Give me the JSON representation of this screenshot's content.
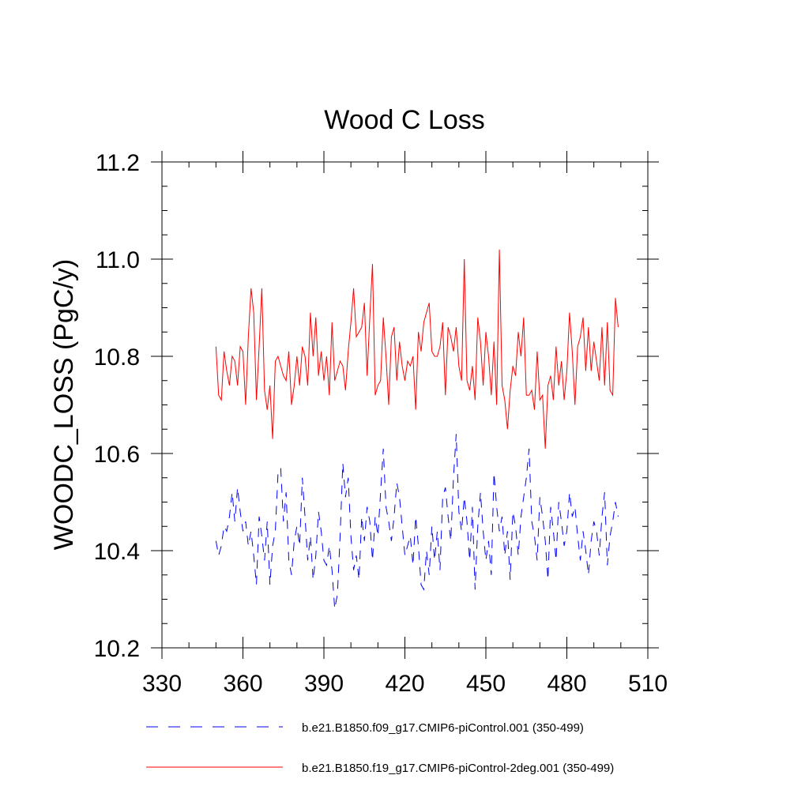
{
  "chart_data": {
    "type": "line",
    "title": "Wood C Loss",
    "xlabel": "",
    "ylabel": "WOODC_LOSS  (PgC/y)",
    "xlim": [
      330,
      510
    ],
    "ylim": [
      10.2,
      11.2
    ],
    "x_ticks": [
      330,
      360,
      390,
      420,
      450,
      480,
      510
    ],
    "x_tick_labels": [
      "330",
      "360",
      "390",
      "420",
      "450",
      "480",
      "510"
    ],
    "y_ticks": [
      10.2,
      10.4,
      10.6,
      10.8,
      11.0,
      11.2
    ],
    "y_tick_labels": [
      "10.2",
      "10.4",
      "10.6",
      "10.8",
      "11.0",
      "11.2"
    ],
    "grid": false,
    "legend_position": "bottom",
    "x": [
      350,
      351,
      352,
      353,
      354,
      355,
      356,
      357,
      358,
      359,
      360,
      361,
      362,
      363,
      364,
      365,
      366,
      367,
      368,
      369,
      370,
      371,
      372,
      373,
      374,
      375,
      376,
      377,
      378,
      379,
      380,
      381,
      382,
      383,
      384,
      385,
      386,
      387,
      388,
      389,
      390,
      391,
      392,
      393,
      394,
      395,
      396,
      397,
      398,
      399,
      400,
      401,
      402,
      403,
      404,
      405,
      406,
      407,
      408,
      409,
      410,
      411,
      412,
      413,
      414,
      415,
      416,
      417,
      418,
      419,
      420,
      421,
      422,
      423,
      424,
      425,
      426,
      427,
      428,
      429,
      430,
      431,
      432,
      433,
      434,
      435,
      436,
      437,
      438,
      439,
      440,
      441,
      442,
      443,
      444,
      445,
      446,
      447,
      448,
      449,
      450,
      451,
      452,
      453,
      454,
      455,
      456,
      457,
      458,
      459,
      460,
      461,
      462,
      463,
      464,
      465,
      466,
      467,
      468,
      469,
      470,
      471,
      472,
      473,
      474,
      475,
      476,
      477,
      478,
      479,
      480,
      481,
      482,
      483,
      484,
      485,
      486,
      487,
      488,
      489,
      490,
      491,
      492,
      493,
      494,
      495,
      496,
      497,
      498,
      499
    ],
    "series": [
      {
        "name": "b.e21.B1850.f09_g17.CMIP6-piControl.001 (350-499)",
        "color": "#0000ff",
        "style": "dashed",
        "values": [
          10.42,
          10.39,
          10.41,
          10.45,
          10.44,
          10.47,
          10.52,
          10.46,
          10.53,
          10.48,
          10.44,
          10.46,
          10.41,
          10.44,
          10.39,
          10.33,
          10.47,
          10.43,
          10.38,
          10.46,
          10.33,
          10.41,
          10.44,
          10.56,
          10.57,
          10.46,
          10.52,
          10.38,
          10.35,
          10.42,
          10.45,
          10.41,
          10.55,
          10.47,
          10.38,
          10.43,
          10.34,
          10.39,
          10.48,
          10.44,
          10.38,
          10.37,
          10.41,
          10.36,
          10.28,
          10.31,
          10.43,
          10.58,
          10.51,
          10.55,
          10.43,
          10.36,
          10.39,
          10.34,
          10.47,
          10.42,
          10.49,
          10.46,
          10.38,
          10.47,
          10.43,
          10.52,
          10.61,
          10.49,
          10.46,
          10.42,
          10.47,
          10.54,
          10.51,
          10.45,
          10.39,
          10.41,
          10.43,
          10.37,
          10.47,
          10.41,
          10.33,
          10.32,
          10.4,
          10.35,
          10.45,
          10.38,
          10.44,
          10.36,
          10.51,
          10.53,
          10.47,
          10.42,
          10.55,
          10.64,
          10.48,
          10.44,
          10.51,
          10.46,
          10.38,
          10.49,
          10.32,
          10.45,
          10.52,
          10.44,
          10.38,
          10.42,
          10.35,
          10.56,
          10.49,
          10.44,
          10.47,
          10.39,
          10.44,
          10.34,
          10.48,
          10.45,
          10.39,
          10.47,
          10.51,
          10.55,
          10.61,
          10.46,
          10.43,
          10.38,
          10.51,
          10.47,
          10.42,
          10.34,
          10.49,
          10.44,
          10.38,
          10.5,
          10.46,
          10.41,
          10.44,
          10.52,
          10.47,
          10.49,
          10.43,
          10.38,
          10.44,
          10.4,
          10.35,
          10.42,
          10.46,
          10.44,
          10.39,
          10.47,
          10.52,
          10.37,
          10.43,
          10.46,
          10.5,
          10.47
        ]
      },
      {
        "name": "b.e21.B1850.f19_g17.CMIP6-piControl-2deg.001 (350-499)",
        "color": "#ff0000",
        "style": "solid",
        "values": [
          10.82,
          10.72,
          10.71,
          10.81,
          10.77,
          10.74,
          10.8,
          10.79,
          10.74,
          10.82,
          10.81,
          10.7,
          10.84,
          10.94,
          10.89,
          10.71,
          10.82,
          10.94,
          10.73,
          10.69,
          10.74,
          10.63,
          10.79,
          10.8,
          10.78,
          10.76,
          10.75,
          10.81,
          10.7,
          10.74,
          10.8,
          10.74,
          10.82,
          10.8,
          10.74,
          10.89,
          10.8,
          10.88,
          10.76,
          10.81,
          10.75,
          10.8,
          10.72,
          10.87,
          10.75,
          10.77,
          10.79,
          10.78,
          10.73,
          10.81,
          10.87,
          10.94,
          10.84,
          10.85,
          10.86,
          10.91,
          10.76,
          10.88,
          10.99,
          10.72,
          10.74,
          10.75,
          10.88,
          10.8,
          10.7,
          10.84,
          10.86,
          10.75,
          10.83,
          10.78,
          10.75,
          10.79,
          10.78,
          10.8,
          10.69,
          10.85,
          10.81,
          10.87,
          10.89,
          10.91,
          10.81,
          10.8,
          10.8,
          10.82,
          10.87,
          10.72,
          10.86,
          10.84,
          10.81,
          10.86,
          10.78,
          10.75,
          11.0,
          10.75,
          10.73,
          10.78,
          10.71,
          10.88,
          10.83,
          10.74,
          10.85,
          10.8,
          10.72,
          10.83,
          10.7,
          11.02,
          10.74,
          10.71,
          10.65,
          10.73,
          10.78,
          10.76,
          10.85,
          10.8,
          10.88,
          10.72,
          10.72,
          10.73,
          10.69,
          10.81,
          10.71,
          10.72,
          10.61,
          10.74,
          10.76,
          10.71,
          10.82,
          10.74,
          10.79,
          10.71,
          10.77,
          10.89,
          10.81,
          10.7,
          10.82,
          10.84,
          10.88,
          10.77,
          10.86,
          10.77,
          10.83,
          10.79,
          10.75,
          10.86,
          10.74,
          10.87,
          10.73,
          10.72,
          10.92,
          10.86
        ]
      }
    ]
  }
}
